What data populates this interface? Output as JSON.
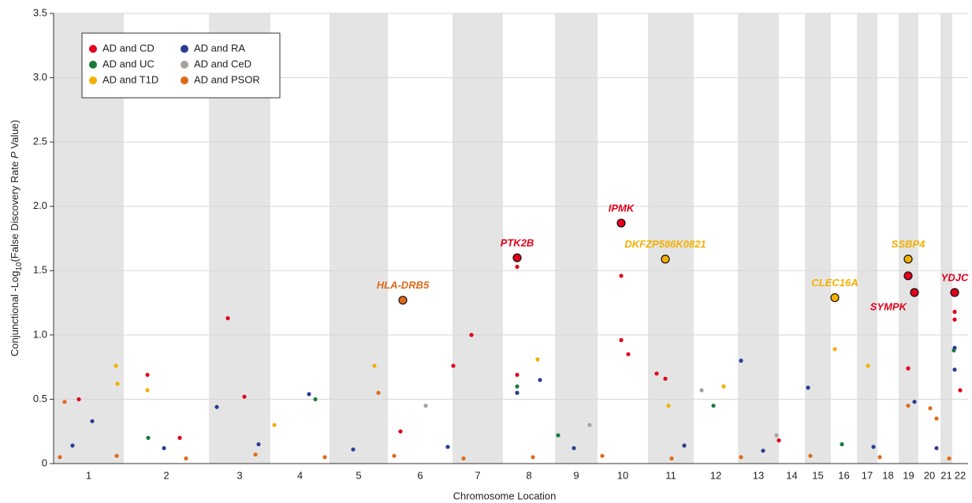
{
  "chart_data": {
    "type": "scatter",
    "x_label": "Chromosome Location",
    "y_label": {
      "prefix": "Conjunctional -Log",
      "subscript": "10",
      "middle": "(False Discovery Rate ",
      "italic": "P",
      "suffix": " Value)"
    },
    "xlim": [
      0,
      2900
    ],
    "ylim": [
      0,
      3.5
    ],
    "yticks": [
      0,
      0.5,
      {
        "value": 1,
        "label": "1.0"
      },
      1.5,
      {
        "value": 2,
        "label": "2.0"
      },
      2.5,
      {
        "value": 3,
        "label": "3.0"
      },
      3.5
    ],
    "grid": true,
    "legend": "upper left",
    "chromosomes": [
      {
        "label": "1",
        "start": 0,
        "end": 222.5
      },
      {
        "label": "2",
        "start": 222.5,
        "end": 492.5
      },
      {
        "label": "3",
        "start": 492.5,
        "end": 687.5
      },
      {
        "label": "4",
        "start": 687.5,
        "end": 875
      },
      {
        "label": "5",
        "start": 875,
        "end": 1060
      },
      {
        "label": "6",
        "start": 1060,
        "end": 1265
      },
      {
        "label": "7",
        "start": 1265,
        "end": 1425
      },
      {
        "label": "8",
        "start": 1425,
        "end": 1590
      },
      {
        "label": "9",
        "start": 1590,
        "end": 1725
      },
      {
        "label": "10",
        "start": 1725,
        "end": 1885
      },
      {
        "label": "11",
        "start": 1885,
        "end": 2030
      },
      {
        "label": "12",
        "start": 2030,
        "end": 2170
      },
      {
        "label": "13",
        "start": 2170,
        "end": 2300
      },
      {
        "label": "14",
        "start": 2300,
        "end": 2382.5
      },
      {
        "label": "15",
        "start": 2382.5,
        "end": 2465
      },
      {
        "label": "16",
        "start": 2465,
        "end": 2547.5
      },
      {
        "label": "17",
        "start": 2547.5,
        "end": 2612.5
      },
      {
        "label": "18",
        "start": 2612.5,
        "end": 2680
      },
      {
        "label": "19",
        "start": 2680,
        "end": 2742.5
      },
      {
        "label": "20",
        "start": 2742.5,
        "end": 2812.5
      },
      {
        "label": "21",
        "start": 2812.5,
        "end": 2850
      },
      {
        "label": "22",
        "start": 2850,
        "end": 2900
      }
    ],
    "series": [
      {
        "name": "AD and CD",
        "color": "#e2001a",
        "x": [
          552.5,
          1325,
          1470,
          1800,
          1800,
          1822.5,
          1912.5,
          1940,
          1267.5,
          2710,
          2857.5,
          2857.5,
          2875,
          297.5,
          80,
          1470,
          605,
          400,
          1100,
          2300
        ],
        "values": [
          1.13,
          1.0,
          1.53,
          1.46,
          0.96,
          0.85,
          0.7,
          0.66,
          0.76,
          0.74,
          1.18,
          1.12,
          0.57,
          0.69,
          0.5,
          0.69,
          0.52,
          0.2,
          0.25,
          0.18
        ]
      },
      {
        "name": "AD and UC",
        "color": "#1b7a3b",
        "x": [
          1470,
          2855,
          830,
          2092.5,
          300,
          1600,
          2500
        ],
        "values": [
          0.6,
          0.88,
          0.5,
          0.45,
          0.2,
          0.22,
          0.15
        ]
      },
      {
        "name": "AD and T1D",
        "color": "#f4b000",
        "x": [
          197.5,
          297.5,
          1017.5,
          1535,
          2477.5,
          2582.5,
          2125,
          202.5,
          1950,
          700
        ],
        "values": [
          0.76,
          0.57,
          0.76,
          0.81,
          0.89,
          0.76,
          0.6,
          0.62,
          0.45,
          0.3
        ]
      },
      {
        "name": "AD and RA",
        "color": "#2b3d92",
        "x": [
          2180,
          2857.5,
          2857.5,
          2392.5,
          1542.5,
          810,
          1470,
          2730,
          517.5,
          122.5,
          60,
          350,
          650,
          950,
          1250,
          1650,
          2000,
          2250,
          2600,
          2800
        ],
        "values": [
          0.8,
          0.9,
          0.73,
          0.59,
          0.65,
          0.54,
          0.55,
          0.48,
          0.44,
          0.33,
          0.14,
          0.12,
          0.15,
          0.11,
          0.13,
          0.12,
          0.14,
          0.1,
          0.13,
          0.12
        ]
      },
      {
        "name": "AD and CeD",
        "color": "#a8a29a",
        "x": [
          1180,
          2292.5,
          2055,
          1700
        ],
        "values": [
          0.45,
          0.22,
          0.57,
          0.3
        ]
      },
      {
        "name": "AD and PSOR",
        "color": "#e06a1a",
        "x": [
          35,
          1030,
          2710,
          2800,
          2780,
          20,
          200,
          420,
          640,
          860,
          1080,
          1300,
          1520,
          1740,
          1960,
          2180,
          2400,
          2620,
          2840
        ],
        "values": [
          0.48,
          0.55,
          0.45,
          0.35,
          0.43,
          0.05,
          0.06,
          0.04,
          0.07,
          0.05,
          0.06,
          0.04,
          0.05,
          0.06,
          0.04,
          0.05,
          0.06,
          0.05,
          0.04
        ]
      }
    ],
    "highlights": [
      {
        "label": "HLA-DRB5",
        "series": "AD and PSOR",
        "x": 1107.5,
        "value": 1.27
      },
      {
        "label": "PTK2B",
        "series": "AD and CD",
        "x": 1470,
        "value": 1.6
      },
      {
        "label": "IPMK",
        "series": "AD and CD",
        "x": 1800,
        "value": 1.87
      },
      {
        "label": "DKFZP586K0821",
        "series": "AD and T1D",
        "x": 1940,
        "value": 1.59
      },
      {
        "label": "CLEC16A",
        "series": "AD and T1D",
        "x": 2477.5,
        "value": 1.29
      },
      {
        "label": "SSBP4",
        "series": "AD and T1D",
        "x": 2710,
        "value": 1.59
      },
      {
        "series": "AD and CD",
        "x": 2710,
        "value": 1.46
      },
      {
        "label": "SYMPK",
        "series": "AD and CD",
        "x": 2730,
        "value": 1.33,
        "label_position": "below-left"
      },
      {
        "label": "YDJC",
        "series": "AD and CD",
        "x": 2857.5,
        "value": 1.33
      }
    ]
  }
}
